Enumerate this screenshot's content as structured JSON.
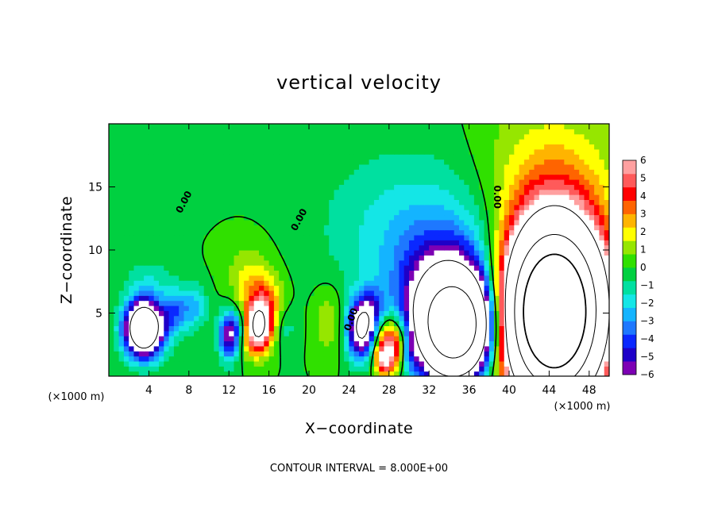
{
  "chart_data": {
    "type": "heatmap",
    "title": "vertical velocity",
    "xlabel": "X−coordinate",
    "ylabel": "Z−coordinate",
    "x_unit_label": "(×1000 m)",
    "y_unit_label": "(×1000 m)",
    "footer": "CONTOUR INTERVAL =  8.000E+00",
    "xlim": [
      0,
      50
    ],
    "ylim": [
      0,
      20
    ],
    "x_ticks": [
      4,
      8,
      12,
      16,
      20,
      24,
      28,
      32,
      36,
      40,
      44,
      48
    ],
    "x_tick_labels": [
      "4",
      "8",
      "12",
      "16",
      "20",
      "24",
      "28",
      "32",
      "36",
      "40",
      "44",
      "48"
    ],
    "y_ticks": [
      5,
      10,
      15
    ],
    "y_tick_labels": [
      "5",
      "10",
      "15"
    ],
    "colorbar": {
      "range": [
        -6,
        6
      ],
      "tick_values": [
        6,
        5,
        4,
        3,
        2,
        1,
        0,
        -1,
        -2,
        -3,
        -4,
        -5,
        -6
      ],
      "tick_labels": [
        "6",
        "5",
        "4",
        "3",
        "2",
        "1",
        "0",
        "−1",
        "−2",
        "−3",
        "−4",
        "−5",
        "−6"
      ],
      "colors": [
        "#7d00b4",
        "#1e00c8",
        "#0a28ff",
        "#1e78ff",
        "#14b4ff",
        "#14e6e6",
        "#00e0a0",
        "#00d040",
        "#30e000",
        "#96e600",
        "#ffff00",
        "#ffb400",
        "#ff6400",
        "#ff0000",
        "#ff5a5a",
        "#ffa0a0"
      ]
    },
    "contour_labels": [
      {
        "text": "0.00",
        "x": 7.5,
        "z": 13.8,
        "angle": -62
      },
      {
        "text": "0.00",
        "x": 19.0,
        "z": 12.4,
        "angle": -62
      },
      {
        "text": "0.00",
        "x": 24.2,
        "z": 4.5,
        "angle": -70
      },
      {
        "text": "0.00",
        "x": 38.8,
        "z": 14.2,
        "angle": 90
      }
    ],
    "features": [
      {
        "x": 3.5,
        "z": 3.8,
        "sx": 1.3,
        "sy": 1.5,
        "amp": -14
      },
      {
        "x": 6.5,
        "z": 5.0,
        "sx": 0.9,
        "sy": 1.3,
        "amp": -3
      },
      {
        "x": 8.5,
        "z": 5.5,
        "sx": 1.0,
        "sy": 1.2,
        "amp": -2.5
      },
      {
        "x": 4.0,
        "z": 7.5,
        "sx": 1.8,
        "sy": 1.4,
        "amp": -1.2
      },
      {
        "x": 12.0,
        "z": 3.2,
        "sx": 0.7,
        "sy": 1.3,
        "amp": -6
      },
      {
        "x": 13.4,
        "z": 4.0,
        "sx": 0.8,
        "sy": 1.0,
        "amp": -3
      },
      {
        "x": 14.8,
        "z": 3.8,
        "sx": 1.0,
        "sy": 1.3,
        "amp": 9
      },
      {
        "x": 15.5,
        "z": 5.8,
        "sx": 1.3,
        "sy": 1.5,
        "amp": 3.5
      },
      {
        "x": 14.0,
        "z": 8.0,
        "sx": 1.6,
        "sy": 1.8,
        "amp": 1.5
      },
      {
        "x": 17.5,
        "z": 4.0,
        "sx": 1.0,
        "sy": 1.2,
        "amp": -1.2
      },
      {
        "x": 22.0,
        "z": 4.5,
        "sx": 1.2,
        "sy": 2.0,
        "amp": 1.5
      },
      {
        "x": 25.3,
        "z": 3.8,
        "sx": 1.0,
        "sy": 1.6,
        "amp": -9
      },
      {
        "x": 26.5,
        "z": 5.5,
        "sx": 0.8,
        "sy": 1.2,
        "amp": -2
      },
      {
        "x": 28.2,
        "z": 2.5,
        "sx": 1.2,
        "sy": 1.4,
        "amp": 7
      },
      {
        "x": 27.5,
        "z": 1.2,
        "sx": 0.6,
        "sy": 0.8,
        "amp": 4
      },
      {
        "x": 30.0,
        "z": 1.8,
        "sx": 0.5,
        "sy": 1.0,
        "amp": -2
      },
      {
        "x": 34.5,
        "z": 3.8,
        "sx": 2.4,
        "sy": 2.6,
        "amp": -22
      },
      {
        "x": 34.0,
        "z": 6.5,
        "sx": 3.5,
        "sy": 3.2,
        "amp": -5
      },
      {
        "x": 33.5,
        "z": 10.5,
        "sx": 5.5,
        "sy": 4.0,
        "amp": -1.8
      },
      {
        "x": 28.0,
        "z": 12.0,
        "sx": 6.0,
        "sy": 5.0,
        "amp": -1.0
      },
      {
        "x": 44.5,
        "z": 5.0,
        "sx": 3.0,
        "sy": 4.2,
        "amp": 40
      },
      {
        "x": 44.0,
        "z": 11.0,
        "sx": 4.5,
        "sy": 6.0,
        "amp": 2.5
      },
      {
        "x": 44.5,
        "z": 16.0,
        "sx": 5.0,
        "sy": 4.0,
        "amp": 1.0
      }
    ]
  }
}
